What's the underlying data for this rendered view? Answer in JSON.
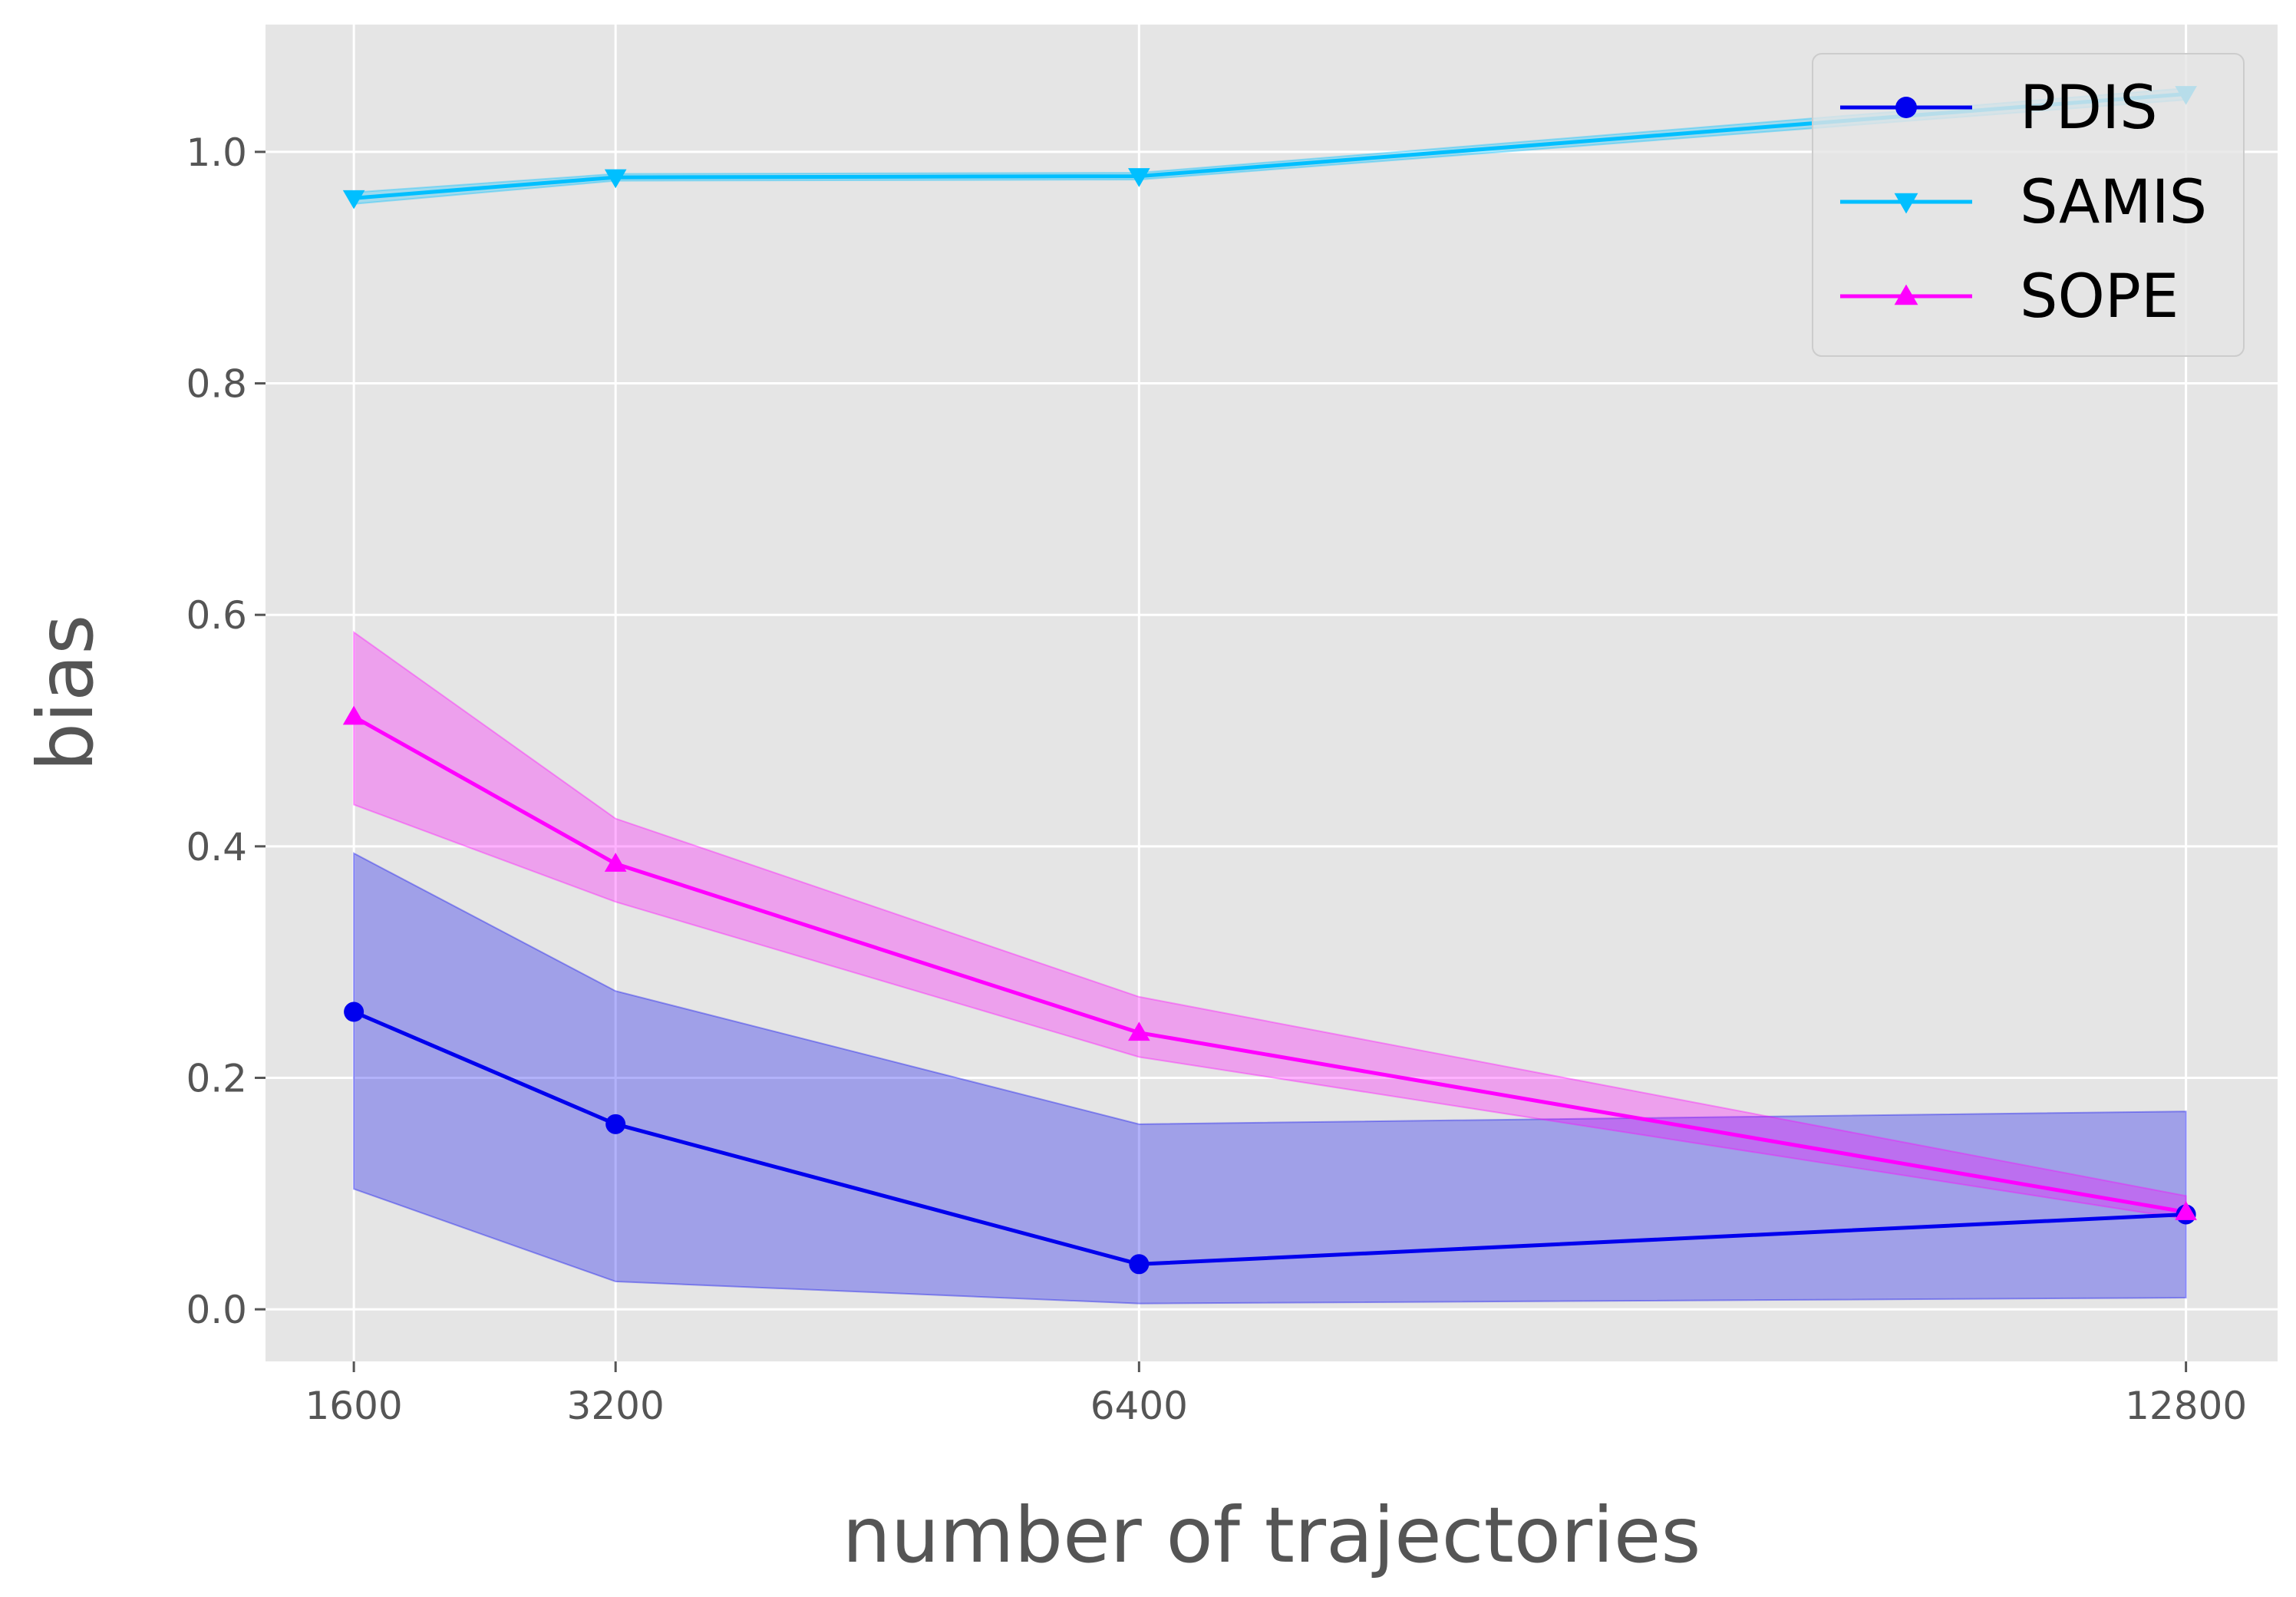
{
  "chart_data": {
    "type": "line",
    "title": "",
    "xlabel": "number of trajectories",
    "ylabel": "bias",
    "x": [
      1600,
      3200,
      6400,
      12800
    ],
    "x_tick_labels": [
      "1600",
      "3200",
      "6400",
      "12800"
    ],
    "y_ticks": [
      0.0,
      0.2,
      0.4,
      0.6,
      0.8,
      1.0
    ],
    "y_tick_labels": [
      "0.0",
      "0.2",
      "0.4",
      "0.6",
      "0.8",
      "1.0"
    ],
    "xlim": [
      1060,
      13360
    ],
    "ylim": [
      -0.045,
      1.11
    ],
    "grid": true,
    "legend_position": "top-right",
    "series": [
      {
        "name": "PDIS",
        "color": "#0000ee",
        "marker": "circle",
        "values": [
          0.257,
          0.16,
          0.039,
          0.082
        ],
        "lower": [
          0.104,
          0.024,
          0.005,
          0.01
        ],
        "upper": [
          0.394,
          0.275,
          0.16,
          0.171
        ]
      },
      {
        "name": "SAMIS",
        "color": "#00bfff",
        "marker": "triangle-down",
        "values": [
          0.96,
          0.978,
          0.979,
          1.05
        ],
        "lower": [
          0.955,
          0.975,
          0.976,
          1.045
        ],
        "upper": [
          0.965,
          0.981,
          0.982,
          1.055
        ]
      },
      {
        "name": "SOPE",
        "color": "#ff00ff",
        "marker": "triangle-up",
        "values": [
          0.512,
          0.385,
          0.239,
          0.084
        ],
        "lower": [
          0.436,
          0.352,
          0.218,
          0.078
        ],
        "upper": [
          0.585,
          0.424,
          0.27,
          0.098
        ]
      }
    ]
  }
}
